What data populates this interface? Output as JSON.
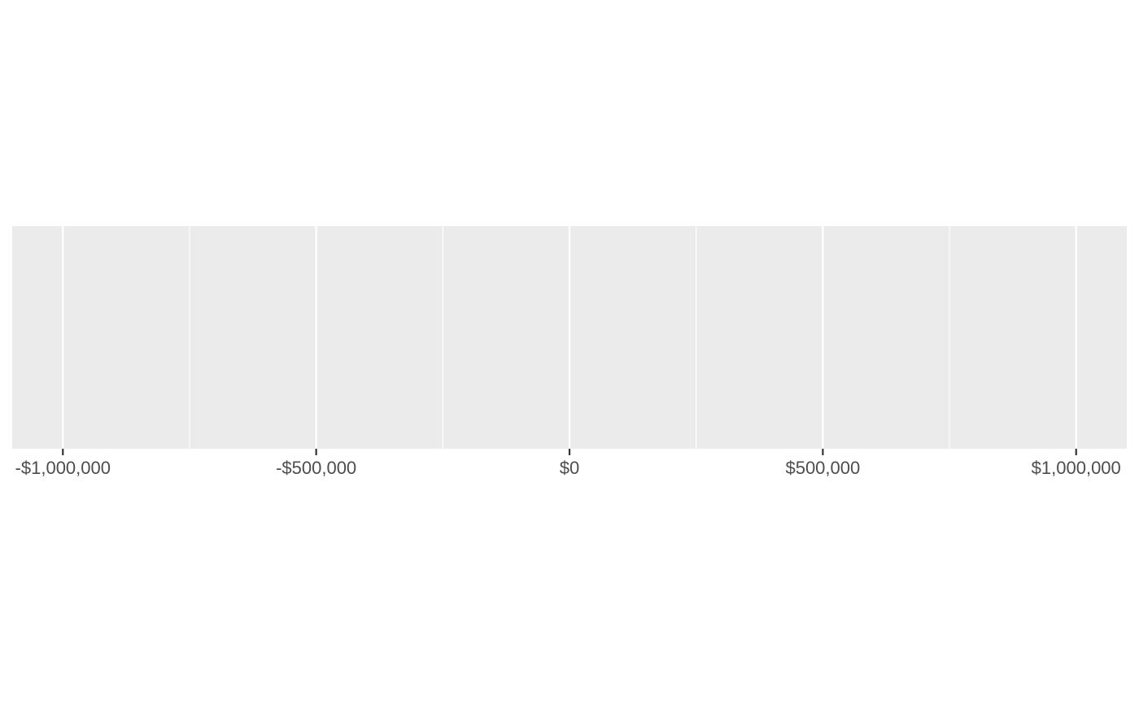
{
  "chart_data": {
    "type": "scatter",
    "title": "",
    "xlabel": "",
    "ylabel": "",
    "xlim": [
      -1100000,
      1100000
    ],
    "x_ticks": [
      {
        "value": -1000000,
        "label": "-$1,000,000"
      },
      {
        "value": -500000,
        "label": "-$500,000"
      },
      {
        "value": 0,
        "label": "$0"
      },
      {
        "value": 500000,
        "label": "$500,000"
      },
      {
        "value": 1000000,
        "label": "$1,000,000"
      }
    ],
    "x_minor_gridlines": [
      -750000,
      -250000,
      250000,
      750000
    ],
    "series": [],
    "grid": true,
    "legend": "none",
    "panel_background": "#ebebeb",
    "gridline_color": "#ffffff",
    "axis_tick_color": "#333333",
    "tick_label_color": "#4d4d4d"
  }
}
